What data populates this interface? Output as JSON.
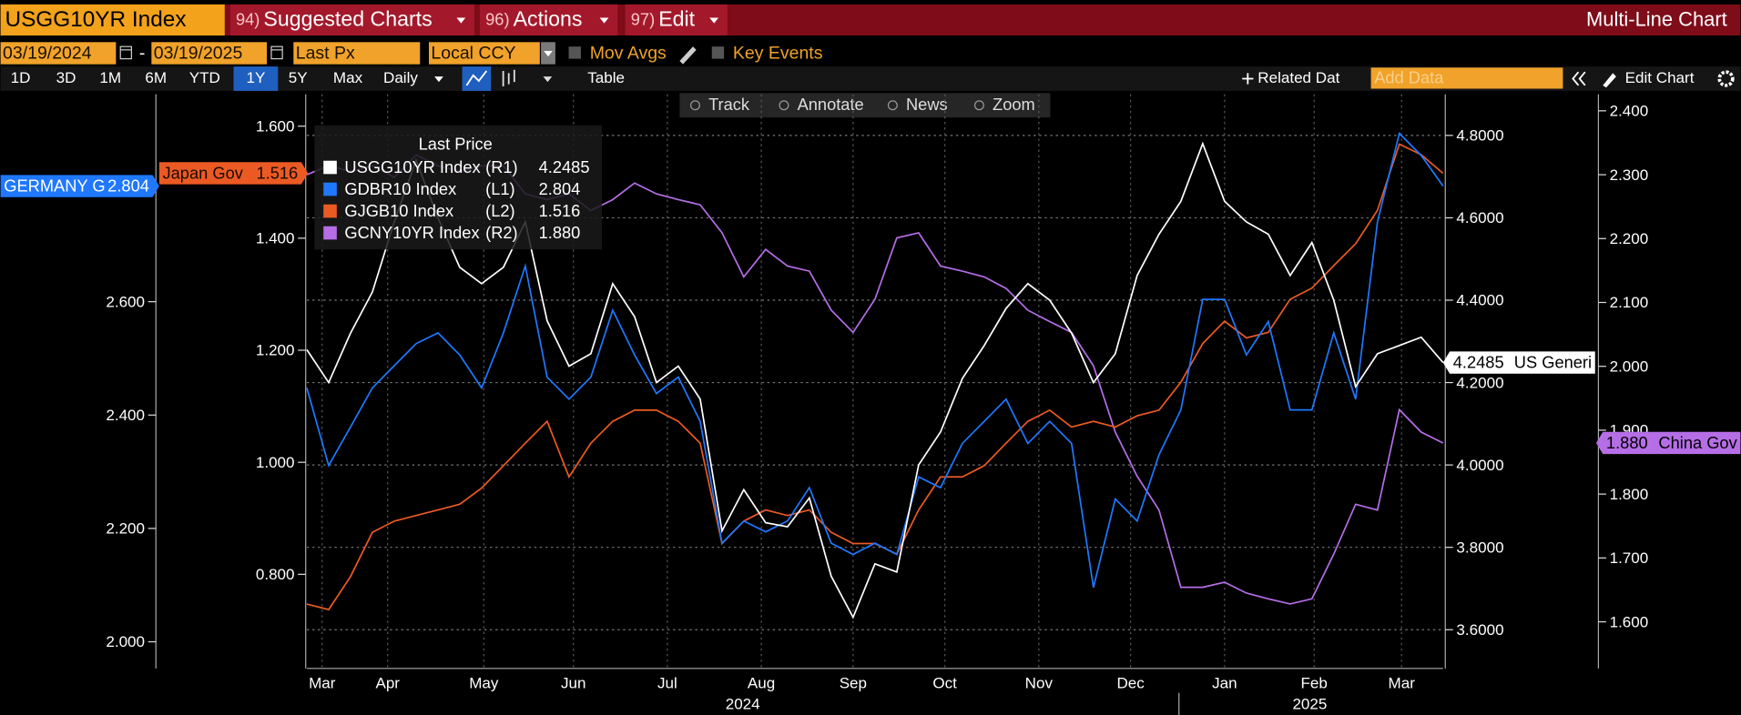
{
  "toolbar": {
    "ticker": "USGG10YR Index",
    "menus": [
      {
        "number": "94)",
        "label": "Suggested Charts"
      },
      {
        "number": "96)",
        "label": "Actions"
      },
      {
        "number": "97)",
        "label": "Edit"
      }
    ],
    "title": "Multi-Line Chart",
    "date_start": "03/19/2024",
    "date_separator": "-",
    "date_end": "03/19/2025",
    "price_field": "Last Px",
    "currency": "Local CCY",
    "toggles": [
      "Mov Avgs",
      "Key Events"
    ],
    "periods": [
      "1D",
      "3D",
      "1M",
      "6M",
      "YTD",
      "1Y",
      "5Y",
      "Max"
    ],
    "selected_period": "1Y",
    "frequency": "Daily",
    "table": "Table",
    "related": "Related Dat",
    "add_data": "Add Data",
    "edit_chart": "Edit Chart"
  },
  "chart_tools": [
    "Track",
    "Annotate",
    "News",
    "Zoom"
  ],
  "chart_data": {
    "type": "line",
    "legend_title": "Last Price",
    "grid": true,
    "grid_axis": "r1",
    "xlim": [
      0,
      52
    ],
    "xticks": [
      {
        "value": 0.7,
        "label": "Mar"
      },
      {
        "value": 3.7,
        "label": "Apr"
      },
      {
        "value": 8.1,
        "label": "May"
      },
      {
        "value": 12.2,
        "label": "Jun"
      },
      {
        "value": 16.5,
        "label": "Jul"
      },
      {
        "value": 20.8,
        "label": "Aug"
      },
      {
        "value": 25.0,
        "label": "Sep"
      },
      {
        "value": 29.2,
        "label": "Oct"
      },
      {
        "value": 33.5,
        "label": "Nov"
      },
      {
        "value": 37.7,
        "label": "Dec"
      },
      {
        "value": 42.0,
        "label": "Jan"
      },
      {
        "value": 46.1,
        "label": "Feb"
      },
      {
        "value": 50.1,
        "label": "Mar"
      }
    ],
    "years": [
      {
        "value": 19.95,
        "label": "2024"
      },
      {
        "value": 45.9,
        "label": "2025"
      }
    ],
    "axes": {
      "l1": {
        "lim": [
          1.953,
          2.966
        ],
        "ticks": [
          {
            "value": 2.0,
            "label": "2.000"
          },
          {
            "value": 2.2,
            "label": "2.200"
          },
          {
            "value": 2.4,
            "label": "2.400"
          },
          {
            "value": 2.6,
            "label": "2.600"
          }
        ]
      },
      "l2": {
        "lim": [
          0.632,
          1.657
        ],
        "ticks": [
          {
            "value": 0.8,
            "label": "0.800"
          },
          {
            "value": 1.0,
            "label": "1.000"
          },
          {
            "value": 1.2,
            "label": "1.200"
          },
          {
            "value": 1.4,
            "label": "1.400"
          },
          {
            "value": 1.6,
            "label": "1.600"
          }
        ]
      },
      "r1": {
        "lim": [
          3.506,
          4.9
        ],
        "ticks": [
          {
            "value": 3.6,
            "label": "3.6000"
          },
          {
            "value": 3.8,
            "label": "3.8000"
          },
          {
            "value": 4.0,
            "label": "4.0000"
          },
          {
            "value": 4.2,
            "label": "4.2000"
          },
          {
            "value": 4.4,
            "label": "4.4000"
          },
          {
            "value": 4.6,
            "label": "4.6000"
          },
          {
            "value": 4.8,
            "label": "4.8000"
          }
        ]
      },
      "r2": {
        "lim": [
          1.527,
          2.426
        ],
        "ticks": [
          {
            "value": 1.6,
            "label": "1.600"
          },
          {
            "value": 1.7,
            "label": "1.700"
          },
          {
            "value": 1.8,
            "label": "1.800"
          },
          {
            "value": 1.9,
            "label": "1.900"
          },
          {
            "value": 2.0,
            "label": "2.000"
          },
          {
            "value": 2.1,
            "label": "2.100"
          },
          {
            "value": 2.2,
            "label": "2.200"
          },
          {
            "value": 2.3,
            "label": "2.300"
          },
          {
            "value": 2.4,
            "label": "2.400"
          }
        ]
      }
    },
    "series": [
      {
        "name": "USGG10YR Index",
        "axis_label": "(R1)",
        "axis": "r1",
        "color": "#ffffff",
        "tag": "US Generi",
        "last_label": "4.2485",
        "values": [
          4.28,
          4.2,
          4.32,
          4.42,
          4.59,
          4.74,
          4.6,
          4.48,
          4.44,
          4.48,
          4.59,
          4.35,
          4.24,
          4.27,
          4.44,
          4.36,
          4.2,
          4.24,
          4.16,
          3.84,
          3.94,
          3.86,
          3.85,
          3.92,
          3.73,
          3.63,
          3.76,
          3.74,
          4.0,
          4.08,
          4.21,
          4.29,
          4.38,
          4.44,
          4.4,
          4.32,
          4.2,
          4.27,
          4.46,
          4.56,
          4.64,
          4.78,
          4.64,
          4.59,
          4.56,
          4.46,
          4.54,
          4.4,
          4.19,
          4.27,
          4.29,
          4.31,
          4.2485
        ]
      },
      {
        "name": "GDBR10 Index",
        "axis_label": "(L1)",
        "axis": "l1",
        "color": "#1f78ff",
        "tag": "GERMANY G",
        "last_label": "2.804",
        "values": [
          2.448,
          2.311,
          2.379,
          2.448,
          2.487,
          2.526,
          2.545,
          2.506,
          2.448,
          2.545,
          2.663,
          2.467,
          2.428,
          2.467,
          2.585,
          2.506,
          2.438,
          2.467,
          2.389,
          2.174,
          2.213,
          2.194,
          2.213,
          2.272,
          2.174,
          2.154,
          2.174,
          2.154,
          2.291,
          2.272,
          2.35,
          2.389,
          2.428,
          2.35,
          2.389,
          2.35,
          2.096,
          2.252,
          2.213,
          2.33,
          2.409,
          2.604,
          2.604,
          2.506,
          2.565,
          2.409,
          2.409,
          2.545,
          2.428,
          2.741,
          2.897,
          2.858,
          2.804
        ]
      },
      {
        "name": "GJGB10 Index",
        "axis_label": "(L2)",
        "axis": "l2",
        "color": "#ec5a24",
        "tag": "Japan Gov",
        "last_label": "1.516",
        "values": [
          0.747,
          0.737,
          0.796,
          0.875,
          0.895,
          0.905,
          0.915,
          0.925,
          0.954,
          0.994,
          1.034,
          1.073,
          0.974,
          1.034,
          1.073,
          1.093,
          1.093,
          1.073,
          1.034,
          0.855,
          0.895,
          0.915,
          0.905,
          0.915,
          0.875,
          0.855,
          0.855,
          0.836,
          0.915,
          0.974,
          0.974,
          0.994,
          1.034,
          1.073,
          1.093,
          1.063,
          1.073,
          1.063,
          1.083,
          1.093,
          1.143,
          1.212,
          1.252,
          1.222,
          1.232,
          1.291,
          1.311,
          1.351,
          1.39,
          1.45,
          1.568,
          1.549,
          1.516
        ]
      },
      {
        "name": "GCNY10YR Index",
        "axis_label": "(R2)",
        "axis": "r2",
        "color": "#b56ee6",
        "tag": "China Gov",
        "last_label": "1.880",
        "values": [
          2.3,
          2.314,
          2.305,
          2.314,
          2.296,
          2.331,
          2.314,
          2.305,
          2.314,
          2.314,
          2.27,
          2.261,
          2.27,
          2.244,
          2.261,
          2.287,
          2.27,
          2.261,
          2.253,
          2.209,
          2.14,
          2.183,
          2.157,
          2.149,
          2.088,
          2.053,
          2.105,
          2.201,
          2.209,
          2.157,
          2.149,
          2.14,
          2.122,
          2.088,
          2.07,
          2.053,
          2.001,
          1.897,
          1.828,
          1.775,
          1.654,
          1.654,
          1.662,
          1.645,
          1.636,
          1.628,
          1.636,
          1.706,
          1.784,
          1.775,
          1.932,
          1.897,
          1.88
        ]
      }
    ]
  }
}
